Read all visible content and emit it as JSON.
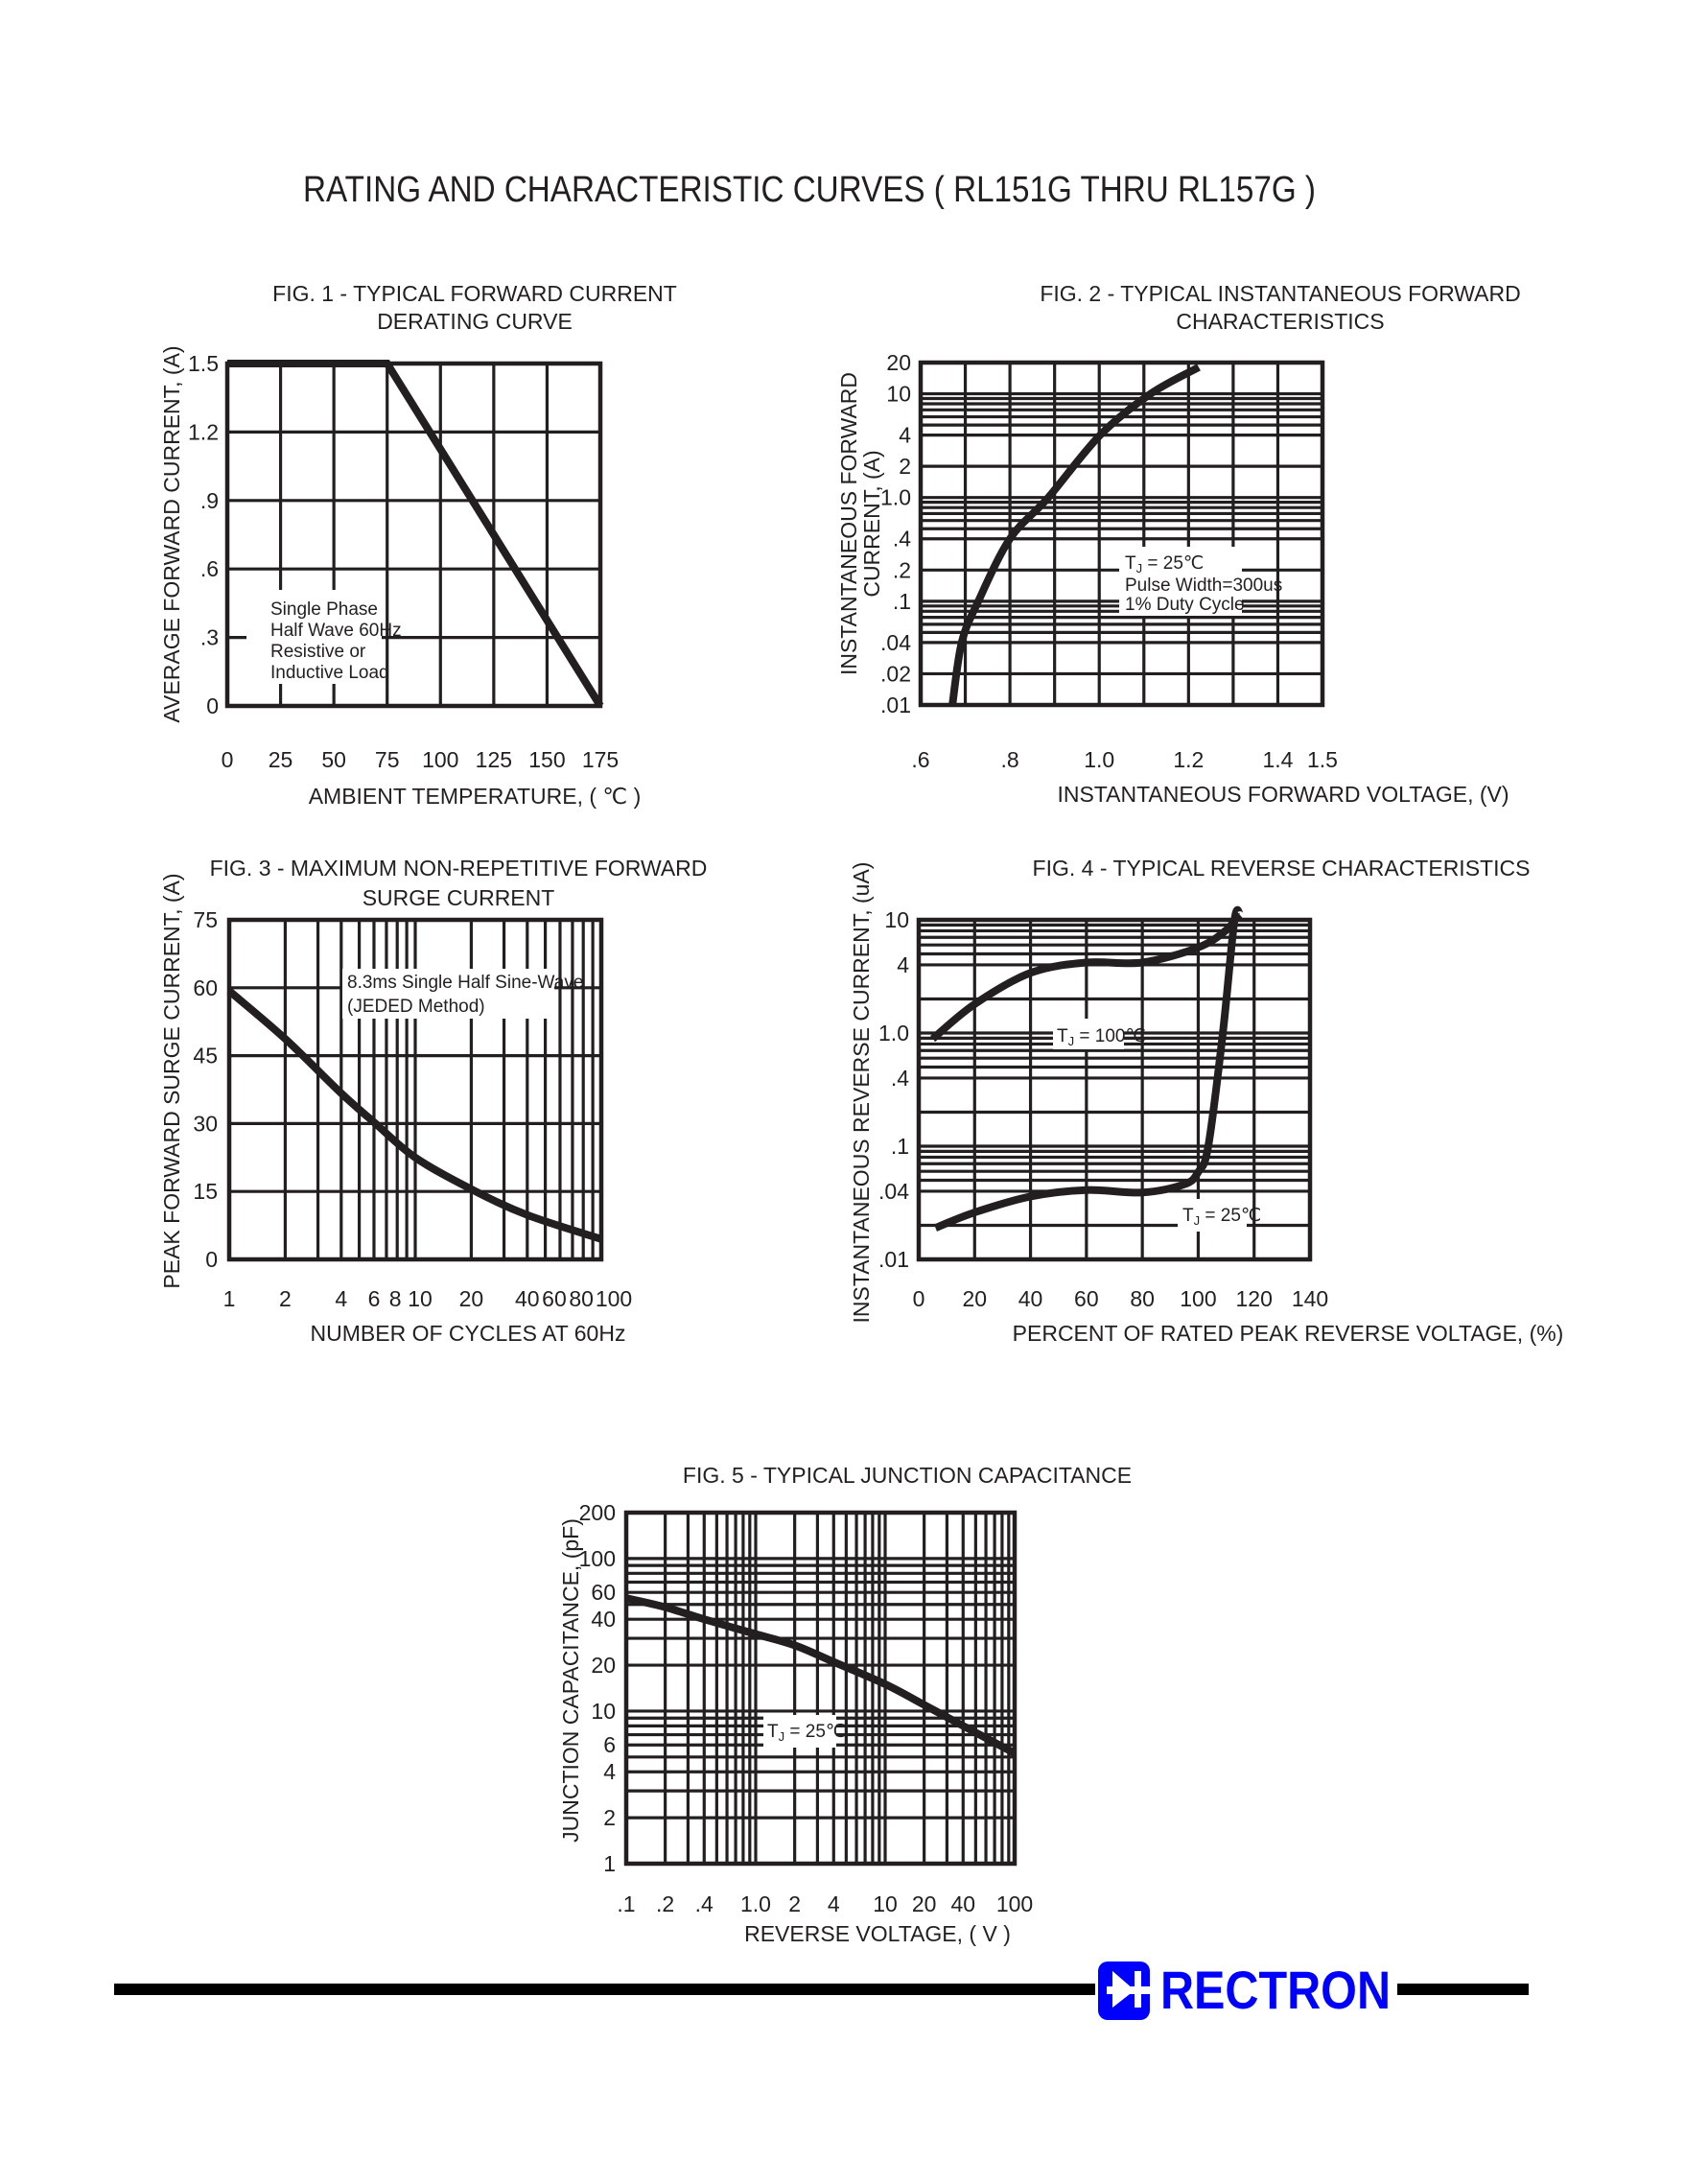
{
  "page_title": "RATING AND CHARACTERISTIC CURVES ( RL151G THRU RL157G )",
  "logo": {
    "text": "RECTRON",
    "color": "#0000ff",
    "icon": "diode-symbol-icon"
  },
  "chart_data": [
    {
      "type": "line",
      "title_lines": [
        "FIG. 1 - TYPICAL FORWARD CURRENT",
        "DERATING CURVE"
      ],
      "xlabel": "AMBIENT TEMPERATURE, ( ℃ )",
      "ylabel_lines": [
        "AVERAGE FORWARD  CURRENT, (A)"
      ],
      "xscale": "linear",
      "yscale": "linear",
      "xlim": [
        0,
        175
      ],
      "ylim": [
        0,
        1.5
      ],
      "grid": true,
      "x_ticks": [
        {
          "v": 0,
          "label": "0"
        },
        {
          "v": 25,
          "label": "25"
        },
        {
          "v": 50,
          "label": "50"
        },
        {
          "v": 75,
          "label": "75"
        },
        {
          "v": 100,
          "label": "100"
        },
        {
          "v": 125,
          "label": "125"
        },
        {
          "v": 150,
          "label": "150"
        },
        {
          "v": 175,
          "label": "175"
        }
      ],
      "y_ticks": [
        {
          "v": 0,
          "label": "0"
        },
        {
          "v": 0.3,
          "label": ".3"
        },
        {
          "v": 0.6,
          "label": ".6"
        },
        {
          "v": 0.9,
          "label": ".9"
        },
        {
          "v": 1.2,
          "label": "1.2"
        },
        {
          "v": 1.5,
          "label": "1.5"
        }
      ],
      "x_grid": [
        25,
        50,
        75,
        100,
        125,
        150
      ],
      "y_grid": [
        0.3,
        0.6,
        0.9,
        1.2
      ],
      "annotations": [
        {
          "lines": [
            "Single Phase",
            "Half Wave 60Hz",
            "Resistive or",
            "Inductive Load"
          ]
        }
      ],
      "series": [
        {
          "x": [
            0,
            75,
            175
          ],
          "y": [
            1.5,
            1.5,
            0
          ]
        }
      ]
    },
    {
      "type": "line",
      "title_lines": [
        "FIG. 2 - TYPICAL INSTANTANEOUS FORWARD",
        "CHARACTERISTICS"
      ],
      "xlabel": "INSTANTANEOUS FORWARD VOLTAGE, (V)",
      "ylabel_lines": [
        "INSTANTANEOUS FORWARD",
        "CURRENT, (A)"
      ],
      "xscale": "linear",
      "yscale": "log",
      "xlim": [
        0.6,
        1.5
      ],
      "ylim": [
        0.01,
        20
      ],
      "grid": true,
      "x_ticks": [
        {
          "v": 0.6,
          "label": ".6"
        },
        {
          "v": 0.8,
          "label": ".8"
        },
        {
          "v": 1.0,
          "label": "1.0"
        },
        {
          "v": 1.2,
          "label": "1.2"
        },
        {
          "v": 1.4,
          "label": "1.4"
        },
        {
          "v": 1.5,
          "label": "1.5"
        }
      ],
      "y_ticks": [
        {
          "v": 0.01,
          "label": ".01"
        },
        {
          "v": 0.02,
          "label": ".02"
        },
        {
          "v": 0.04,
          "label": ".04"
        },
        {
          "v": 0.1,
          "label": ".1"
        },
        {
          "v": 0.2,
          "label": ".2"
        },
        {
          "v": 0.4,
          "label": ".4"
        },
        {
          "v": 1,
          "label": "1.0"
        },
        {
          "v": 2,
          "label": "2"
        },
        {
          "v": 4,
          "label": "4"
        },
        {
          "v": 10,
          "label": "10"
        },
        {
          "v": 20,
          "label": "20"
        }
      ],
      "x_grid": [
        0.7,
        0.8,
        0.9,
        1.0,
        1.1,
        1.2,
        1.3,
        1.4
      ],
      "y_grid_minors": [
        1,
        2,
        4,
        5,
        6,
        7,
        8,
        9
      ],
      "annotations": [
        {
          "tj": {
            "main": "T",
            "sub": "J",
            "rest": " = 25℃"
          },
          "lines": [
            "Pulse Width=300us",
            "1% Duty Cycle"
          ]
        }
      ],
      "series": [
        {
          "x": [
            0.671,
            0.692,
            0.729,
            0.8,
            0.886,
            1.002,
            1.115,
            1.223
          ],
          "y": [
            0.01,
            0.04,
            0.1,
            0.4,
            1.0,
            4,
            10,
            18
          ]
        }
      ]
    },
    {
      "type": "line",
      "title_lines": [
        "FIG. 3 - MAXIMUM NON-REPETITIVE FORWARD",
        "SURGE CURRENT"
      ],
      "xlabel": "NUMBER OF CYCLES AT 60Hz",
      "ylabel_lines": [
        "PEAK FORWARD SURGE CURRENT, (A)"
      ],
      "xscale": "log",
      "yscale": "linear",
      "xlim": [
        1,
        100
      ],
      "ylim": [
        0,
        75
      ],
      "grid": true,
      "x_ticks": [
        {
          "v": 1,
          "label": "1"
        },
        {
          "v": 2,
          "label": "2"
        },
        {
          "v": 4,
          "label": "4"
        },
        {
          "v": 6,
          "label": "6"
        },
        {
          "v": 8,
          "label": "8"
        },
        {
          "v": 10,
          "label": "10"
        },
        {
          "v": 20,
          "label": "20"
        },
        {
          "v": 40,
          "label": "40"
        },
        {
          "v": 60,
          "label": "60"
        },
        {
          "v": 80,
          "label": "80"
        },
        {
          "v": 100,
          "label": "100"
        }
      ],
      "y_ticks": [
        {
          "v": 0,
          "label": "0"
        },
        {
          "v": 15,
          "label": "15"
        },
        {
          "v": 30,
          "label": "30"
        },
        {
          "v": 45,
          "label": "45"
        },
        {
          "v": 60,
          "label": "60"
        },
        {
          "v": 75,
          "label": "75"
        }
      ],
      "x_grid_minors": [
        1,
        2,
        3,
        4,
        5,
        6,
        7,
        8,
        9
      ],
      "y_grid": [
        15,
        30,
        45,
        60
      ],
      "annotations": [
        {
          "lines": [
            "8.3ms Single Half Sine-Wave",
            "(JEDED Method)"
          ]
        }
      ],
      "series": [
        {
          "x": [
            1,
            2,
            4,
            6,
            10,
            20,
            40,
            100
          ],
          "y": [
            59.3,
            48.7,
            36.7,
            30.3,
            22.5,
            15.5,
            9.8,
            4.5
          ]
        }
      ]
    },
    {
      "type": "line",
      "title_lines": [
        "FIG. 4 - TYPICAL REVERSE CHARACTERISTICS"
      ],
      "xlabel": "PERCENT OF RATED PEAK REVERSE VOLTAGE, (%)",
      "ylabel_lines": [
        "INSTANTANEOUS REVERSE CURRENT, (uA)"
      ],
      "xscale": "linear",
      "yscale": "log",
      "xlim": [
        0,
        140
      ],
      "ylim": [
        0.01,
        10
      ],
      "grid": true,
      "x_ticks": [
        {
          "v": 0,
          "label": "0"
        },
        {
          "v": 20,
          "label": "20"
        },
        {
          "v": 40,
          "label": "40"
        },
        {
          "v": 60,
          "label": "60"
        },
        {
          "v": 80,
          "label": "80"
        },
        {
          "v": 100,
          "label": "100"
        },
        {
          "v": 120,
          "label": "120"
        },
        {
          "v": 140,
          "label": "140"
        }
      ],
      "y_ticks": [
        {
          "v": 0.01,
          "label": ".01"
        },
        {
          "v": 0.04,
          "label": ".04"
        },
        {
          "v": 0.1,
          "label": ".1"
        },
        {
          "v": 0.4,
          "label": ".4"
        },
        {
          "v": 1,
          "label": "1.0"
        },
        {
          "v": 4,
          "label": "4"
        },
        {
          "v": 10,
          "label": "10"
        }
      ],
      "x_grid": [
        20,
        40,
        60,
        80,
        100,
        120
      ],
      "y_grid_minors": [
        1,
        2,
        4,
        5,
        6,
        7,
        8,
        9
      ],
      "annotations": [
        {
          "tj": {
            "main": "T",
            "sub": "J",
            "rest": " = 100℃"
          }
        },
        {
          "tj": {
            "main": "T",
            "sub": "J",
            "rest": " = 25℃"
          }
        }
      ],
      "series": [
        {
          "name": "TJ = 100℃",
          "x": [
            5,
            20,
            40,
            60,
            80,
            100,
            110,
            114
          ],
          "y": [
            0.89,
            1.8,
            3.4,
            4.2,
            4.2,
            5.7,
            8.1,
            10.8
          ]
        },
        {
          "name": "TJ = 25℃",
          "x": [
            6,
            20,
            40,
            60,
            80,
            95,
            100,
            103.6,
            108.8,
            113,
            115
          ],
          "y": [
            0.019,
            0.026,
            0.036,
            0.041,
            0.039,
            0.046,
            0.059,
            0.1,
            1.0,
            10,
            11
          ]
        }
      ]
    },
    {
      "type": "line",
      "title_lines": [
        "FIG. 5 - TYPICAL JUNCTION CAPACITANCE"
      ],
      "xlabel": "REVERSE VOLTAGE, ( V )",
      "ylabel_lines": [
        "JUNCTION CAPACITANCE, (pF)"
      ],
      "xscale": "log",
      "yscale": "log",
      "xlim": [
        0.1,
        100
      ],
      "ylim": [
        1,
        200
      ],
      "grid": true,
      "x_ticks": [
        {
          "v": 0.1,
          "label": ".1"
        },
        {
          "v": 0.2,
          "label": ".2"
        },
        {
          "v": 0.4,
          "label": ".4"
        },
        {
          "v": 1,
          "label": "1.0"
        },
        {
          "v": 2,
          "label": "2"
        },
        {
          "v": 4,
          "label": "4"
        },
        {
          "v": 10,
          "label": "10"
        },
        {
          "v": 20,
          "label": "20"
        },
        {
          "v": 40,
          "label": "40"
        },
        {
          "v": 100,
          "label": "100"
        }
      ],
      "y_ticks": [
        {
          "v": 1,
          "label": "1"
        },
        {
          "v": 2,
          "label": "2"
        },
        {
          "v": 4,
          "label": "4"
        },
        {
          "v": 6,
          "label": "6"
        },
        {
          "v": 10,
          "label": "10"
        },
        {
          "v": 20,
          "label": "20"
        },
        {
          "v": 40,
          "label": "40"
        },
        {
          "v": 60,
          "label": "60"
        },
        {
          "v": 100,
          "label": "100"
        },
        {
          "v": 200,
          "label": "200"
        }
      ],
      "x_grid_minors": [
        1,
        2,
        3,
        4,
        5,
        6,
        7,
        8,
        9
      ],
      "y_grid_minors": [
        1,
        2,
        3,
        4,
        5,
        6,
        7,
        8,
        9
      ],
      "annotations": [
        {
          "tj": {
            "main": "T",
            "sub": "J",
            "rest": " = 25℃"
          }
        }
      ],
      "series": [
        {
          "x": [
            0.1,
            0.2,
            0.4,
            1,
            2,
            4,
            10,
            20,
            40,
            100
          ],
          "y": [
            55,
            48,
            40,
            32,
            27,
            21,
            15,
            11,
            8,
            5.3
          ]
        }
      ]
    }
  ]
}
